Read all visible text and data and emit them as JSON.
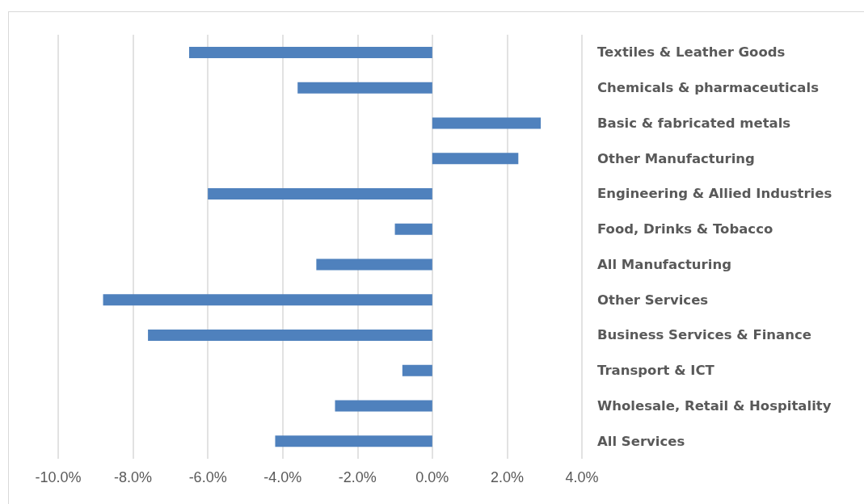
{
  "chart_data": {
    "type": "bar",
    "orientation": "horizontal",
    "categories": [
      "Textiles & Leather Goods",
      "Chemicals & pharmaceuticals",
      "Basic & fabricated metals",
      "Other Manufacturing",
      "Engineering & Allied Industries",
      "Food, Drinks & Tobacco",
      "All Manufacturing",
      "Other Services",
      "Business Services & Finance",
      "Transport & ICT",
      "Wholesale, Retail & Hospitality",
      "All Services"
    ],
    "values": [
      -6.5,
      -3.6,
      2.9,
      2.3,
      -6.0,
      -1.0,
      -3.1,
      -8.8,
      -7.6,
      -0.8,
      -2.6,
      -4.2
    ],
    "color": "#4f81bd",
    "xlim": [
      -10,
      4
    ],
    "xticks": [
      {
        "value": -10,
        "label": "-10.0%"
      },
      {
        "value": -8,
        "label": "-8.0%"
      },
      {
        "value": -6,
        "label": "-6.0%"
      },
      {
        "value": -4,
        "label": "-4.0%"
      },
      {
        "value": -2,
        "label": "-2.0%"
      },
      {
        "value": 0,
        "label": "0.0%"
      },
      {
        "value": 2,
        "label": "2.0%"
      },
      {
        "value": 4,
        "label": "4.0%"
      }
    ],
    "grid": "x"
  }
}
